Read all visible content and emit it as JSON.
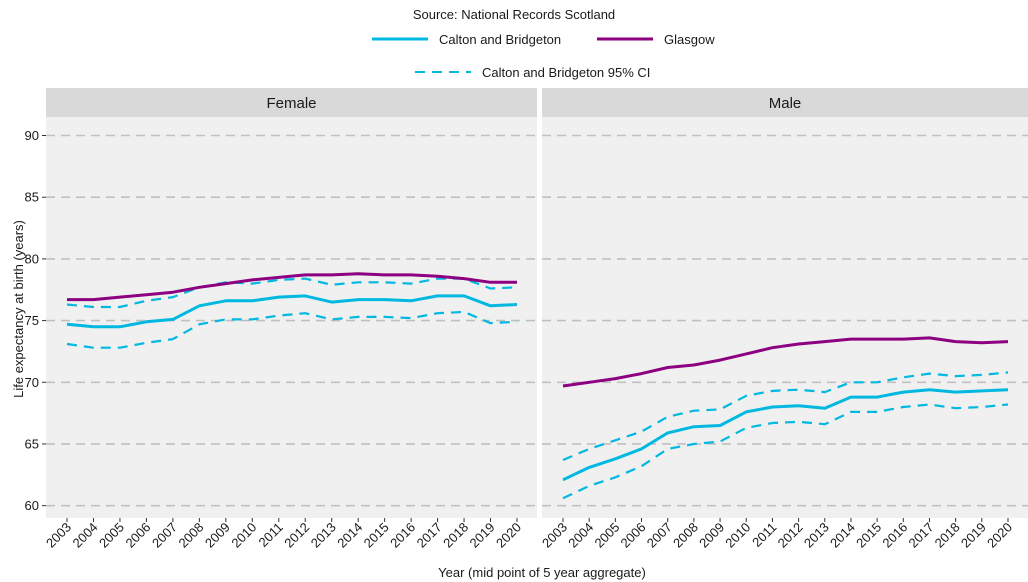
{
  "source_text": "Source: National Records Scotland",
  "colors": {
    "calton": "#00b8e0",
    "glasgow": "#8c0081",
    "panel_bg": "#f0f0f0",
    "strip_bg": "#d9d9d9",
    "grid": "#c0c0c0"
  },
  "chart_data": {
    "type": "line",
    "xlabel": "Year (mid point of 5 year aggregate)",
    "ylabel": "Life expectancy at birth (years)",
    "ylim": [
      59,
      91.5
    ],
    "yticks": [
      60,
      65,
      70,
      75,
      80,
      85,
      90
    ],
    "grid": "horizontal dashed major gridlines",
    "legend_position": "top",
    "legend": [
      {
        "label": "Calton and Bridgeton",
        "style": "solid",
        "color": "#00b8e0"
      },
      {
        "label": "Glasgow",
        "style": "solid",
        "color": "#8c0081"
      },
      {
        "label": "Calton and Bridgeton 95% CI",
        "style": "dashed",
        "color": "#00b8e0"
      }
    ],
    "x": [
      "2003",
      "2004",
      "2005",
      "2006",
      "2007",
      "2008",
      "2009",
      "2010",
      "2011",
      "2012",
      "2013",
      "2014",
      "2015",
      "2016",
      "2017",
      "2018",
      "2019",
      "2020"
    ],
    "panels": [
      {
        "title": "Female",
        "series": [
          {
            "name": "Glasgow",
            "values": [
              76.7,
              76.7,
              76.9,
              77.1,
              77.3,
              77.7,
              78.0,
              78.3,
              78.5,
              78.7,
              78.7,
              78.8,
              78.7,
              78.7,
              78.6,
              78.4,
              78.1,
              78.1
            ]
          },
          {
            "name": "Calton and Bridgeton",
            "values": [
              74.7,
              74.5,
              74.5,
              74.9,
              75.1,
              76.2,
              76.6,
              76.6,
              76.9,
              77.0,
              76.5,
              76.7,
              76.7,
              76.6,
              77.0,
              77.0,
              76.2,
              76.3
            ]
          },
          {
            "name": "Calton and Bridgeton 95% CI",
            "bound": "upper",
            "values": [
              76.3,
              76.1,
              76.1,
              76.6,
              76.9,
              77.7,
              78.1,
              78.0,
              78.3,
              78.4,
              77.9,
              78.1,
              78.1,
              78.0,
              78.4,
              78.4,
              77.6,
              77.7
            ]
          },
          {
            "name": "Calton and Bridgeton 95% CI",
            "bound": "lower",
            "values": [
              73.1,
              72.8,
              72.8,
              73.2,
              73.5,
              74.7,
              75.1,
              75.1,
              75.4,
              75.6,
              75.1,
              75.3,
              75.3,
              75.2,
              75.6,
              75.7,
              74.8,
              74.9
            ]
          }
        ]
      },
      {
        "title": "Male",
        "series": [
          {
            "name": "Glasgow",
            "values": [
              69.7,
              70.0,
              70.3,
              70.7,
              71.2,
              71.4,
              71.8,
              72.3,
              72.8,
              73.1,
              73.3,
              73.5,
              73.5,
              73.5,
              73.6,
              73.3,
              73.2,
              73.3
            ]
          },
          {
            "name": "Calton and Bridgeton",
            "values": [
              62.1,
              63.1,
              63.8,
              64.6,
              65.9,
              66.4,
              66.5,
              67.6,
              68.0,
              68.1,
              67.9,
              68.8,
              68.8,
              69.2,
              69.4,
              69.2,
              69.3,
              69.4
            ]
          },
          {
            "name": "Calton and Bridgeton 95% CI",
            "bound": "upper",
            "values": [
              63.7,
              64.6,
              65.3,
              66.0,
              67.2,
              67.7,
              67.8,
              68.9,
              69.3,
              69.4,
              69.2,
              70.0,
              70.0,
              70.4,
              70.7,
              70.5,
              70.6,
              70.8
            ]
          },
          {
            "name": "Calton and Bridgeton 95% CI",
            "bound": "lower",
            "values": [
              60.6,
              61.6,
              62.3,
              63.2,
              64.6,
              65.0,
              65.2,
              66.3,
              66.7,
              66.8,
              66.6,
              67.6,
              67.6,
              68.0,
              68.2,
              67.9,
              68.0,
              68.2
            ]
          }
        ]
      }
    ]
  }
}
